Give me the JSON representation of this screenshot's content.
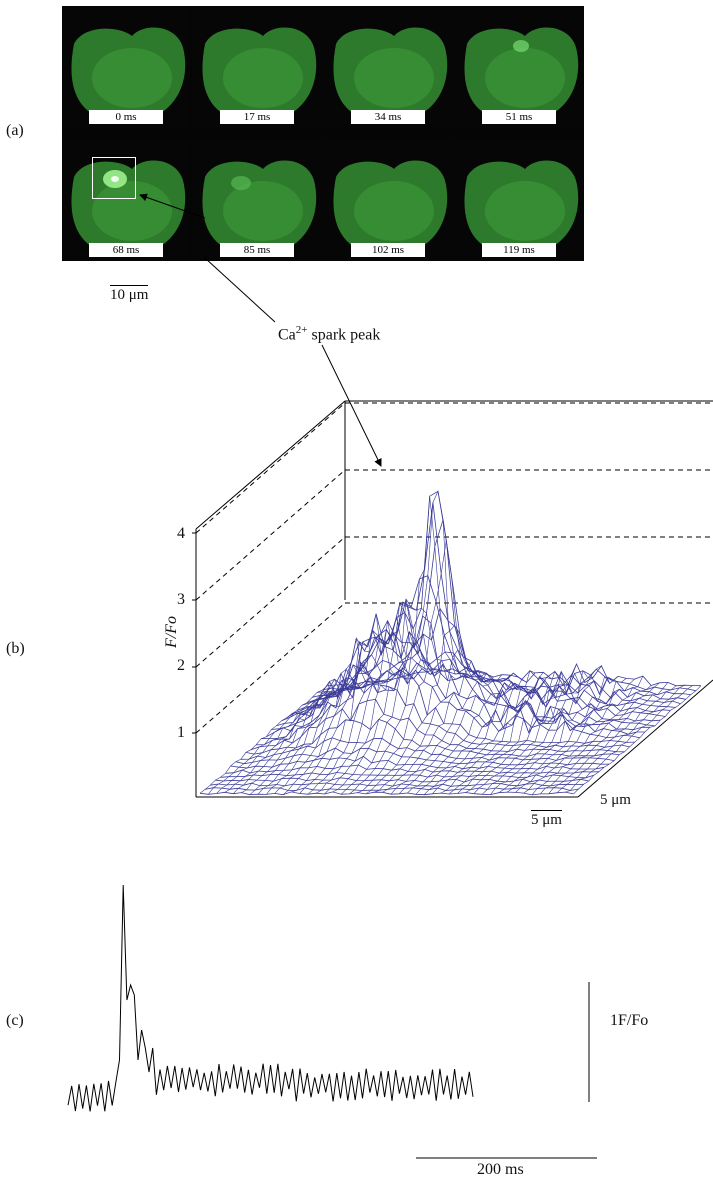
{
  "panel_a": {
    "label": "(a)",
    "frames": [
      "0 ms",
      "17 ms",
      "34 ms",
      "51 ms",
      "68 ms",
      "85 ms",
      "102 ms",
      "119 ms"
    ],
    "scale_bar": "10 μm"
  },
  "annotation": {
    "label_main": "Ca",
    "label_sup": "2+",
    "label_rest": " spark peak"
  },
  "panel_b": {
    "label": "(b)",
    "ylabel": "F/Fo",
    "yticks": [
      "1",
      "2",
      "3",
      "4"
    ],
    "scale_x": "5 μm",
    "scale_y": "5 μm",
    "line_color": "#3b3b9a"
  },
  "panel_c": {
    "label": "(c)",
    "scale_vertical": "1F/Fo",
    "scale_horizontal": "200 ms"
  }
}
